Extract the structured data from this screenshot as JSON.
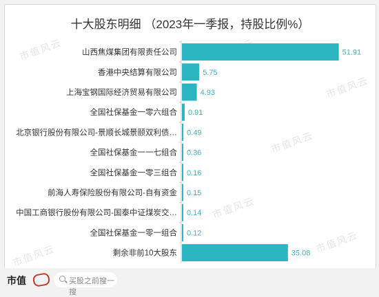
{
  "chart_data": {
    "type": "bar",
    "orientation": "horizontal",
    "title": "十大股东明细 （2023年一季报，持股比例%）",
    "categories": [
      "山西焦煤集团有限责任公司",
      "香港中央结算有限公司",
      "上海宝钢国际经济贸易有限公司",
      "全国社保基金一零六组合",
      "北京银行股份有限公司-景顺长城景颐双利债…",
      "全国社保基金一一七组合",
      "全国社保基金一零三组合",
      "前海人寿保险股份有限公司-自有资金",
      "中国工商银行股份有限公司-国泰中证煤炭交…",
      "全国社保基金一零一组合",
      "剩余非前10大股东"
    ],
    "values": [
      51.91,
      5.75,
      4.93,
      0.91,
      0.49,
      0.36,
      0.16,
      0.15,
      0.14,
      0.12,
      35.08
    ],
    "value_labels": [
      "51.91",
      "5.75",
      "4.93",
      "0.91",
      "0.49",
      "0.36",
      "0.16",
      "0.15",
      "0.14",
      "0.12",
      "35.08"
    ],
    "xlim": [
      0,
      52
    ],
    "grid": false,
    "bar_color": "#2ab5c0",
    "label_color": "#3fb0bd"
  },
  "watermark": "市值风云",
  "footer": {
    "logo": "市值",
    "search_placeholder": "买股之前搜一搜"
  }
}
